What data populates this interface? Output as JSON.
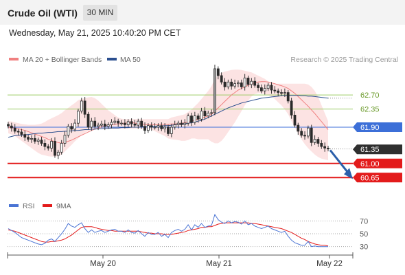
{
  "header": {
    "title": "Crude Oil (WTI)",
    "timeframe": "30 MIN"
  },
  "datetime": "Wednesday, May 21, 2025 10:40:20 PM CET",
  "source": "Research © 2025 Trading Central",
  "colors": {
    "bollinger": "#f08080",
    "ma50": "#2b4f8f",
    "support_line": "#e31b1b",
    "pivot_line": "#3c6fd8",
    "resistance_line": "#9ccc65",
    "arrow": "#2b5faa",
    "rsi": "#4a74d4",
    "rsi_ma": "#e31b1b"
  },
  "chart_data": [
    {
      "type": "candlestick",
      "legend": [
        {
          "name": "MA 20 + Bollinger Bands",
          "color": "#f08080"
        },
        {
          "name": "MA 50",
          "color": "#2b4f8f"
        }
      ],
      "x_ticks": [
        "May 20",
        "May 21",
        "May 22"
      ],
      "y_range": [
        60.45,
        63.35
      ],
      "levels": [
        {
          "value": 62.7,
          "label": "62.70",
          "kind": "resistance"
        },
        {
          "value": 62.35,
          "label": "62.35",
          "kind": "resistance"
        },
        {
          "value": 61.9,
          "label": "61.90",
          "kind": "pivot"
        },
        {
          "value": 61.35,
          "label": "61.35",
          "kind": "last"
        },
        {
          "value": 61.0,
          "label": "61.00",
          "kind": "support"
        },
        {
          "value": 60.65,
          "label": "60.65",
          "kind": "support"
        }
      ],
      "closes": [
        61.93,
        61.88,
        61.8,
        61.78,
        61.72,
        61.65,
        61.6,
        61.62,
        61.55,
        61.58,
        61.5,
        61.42,
        61.38,
        61.55,
        61.2,
        61.28,
        61.5,
        61.7,
        61.92,
        61.85,
        62.0,
        62.3,
        62.55,
        62.22,
        61.9,
        62.05,
        61.92,
        61.95,
        61.98,
        61.92,
        61.96,
        62.02,
        62.05,
        62.0,
        62.0,
        61.96,
        62.04,
        61.98,
        61.95,
        62.05,
        61.92,
        61.82,
        61.94,
        61.9,
        61.9,
        61.94,
        61.86,
        61.9,
        61.74,
        61.9,
        61.96,
        62.0,
        61.96,
        62.0,
        62.18,
        62.02,
        62.18,
        62.1,
        62.3,
        62.18,
        62.25,
        62.26,
        63.35,
        63.18,
        63.02,
        62.9,
        63.02,
        62.92,
        62.98,
        63.0,
        62.9,
        63.12,
        62.96,
        63.04,
        62.94,
        62.88,
        62.8,
        62.86,
        62.94,
        62.82,
        62.8,
        62.76,
        62.74,
        62.76,
        62.55,
        62.2,
        61.95,
        61.8,
        61.7,
        61.68,
        61.88,
        61.52,
        61.6,
        61.5,
        61.42,
        61.38,
        61.36
      ],
      "ma50": [
        61.65,
        61.67,
        61.69,
        61.7,
        61.7,
        61.71,
        61.72,
        61.73,
        61.74,
        61.75,
        61.75,
        61.76,
        61.77,
        61.77,
        61.78,
        61.79,
        61.79,
        61.8,
        61.8,
        61.81,
        61.82,
        61.82,
        61.83,
        61.84,
        61.84,
        61.85,
        61.85,
        61.86,
        61.86,
        61.87,
        61.87,
        61.88,
        61.88,
        61.88,
        61.89,
        61.89,
        61.89,
        61.9,
        61.9,
        61.9,
        61.91,
        61.91,
        61.91,
        61.92,
        61.92,
        61.93,
        61.93,
        61.94,
        61.94,
        61.95,
        61.96,
        61.97,
        61.98,
        61.99,
        62.0,
        62.01,
        62.03,
        62.05,
        62.07,
        62.1,
        62.14,
        62.18,
        62.22,
        62.26,
        62.3,
        62.34,
        62.38,
        62.41,
        62.44,
        62.47,
        62.5,
        62.52,
        62.54,
        62.56,
        62.58,
        62.6,
        62.62,
        62.63,
        62.64,
        62.65,
        62.66,
        62.67,
        62.68,
        62.69,
        62.69,
        62.69,
        62.69,
        62.69,
        62.68,
        62.68,
        62.67,
        62.67,
        62.66,
        62.65,
        62.64,
        62.63,
        62.62
      ],
      "ma20": [
        61.9,
        61.89,
        61.88,
        61.86,
        61.84,
        61.82,
        61.79,
        61.76,
        61.73,
        61.7,
        61.67,
        61.64,
        61.6,
        61.57,
        61.54,
        61.52,
        61.5,
        61.52,
        61.55,
        61.58,
        61.62,
        61.66,
        61.7,
        61.74,
        61.78,
        61.82,
        61.85,
        61.88,
        61.91,
        61.93,
        61.95,
        61.96,
        61.97,
        61.98,
        61.99,
        62.0,
        62.01,
        62.02,
        62.0,
        61.99,
        61.98,
        61.97,
        61.96,
        61.96,
        61.96,
        61.96,
        61.97,
        61.97,
        61.97,
        61.98,
        61.98,
        61.99,
        62.0,
        62.01,
        62.03,
        62.05,
        62.08,
        62.1,
        62.12,
        62.15,
        62.18,
        62.22,
        62.3,
        62.38,
        62.46,
        62.54,
        62.62,
        62.7,
        62.76,
        62.82,
        62.86,
        62.9,
        62.94,
        62.98,
        63.0,
        63.02,
        63.03,
        63.03,
        63.02,
        63.0,
        62.98,
        62.95,
        62.93,
        62.9,
        62.86,
        62.8,
        62.74,
        62.66,
        62.58,
        62.5,
        62.42,
        62.33,
        62.24,
        62.14,
        62.04,
        61.94,
        61.84
      ],
      "bb_upper": [
        62.05,
        62.04,
        62.02,
        62.0,
        61.98,
        61.97,
        61.96,
        61.96,
        61.96,
        61.97,
        61.99,
        62.03,
        62.08,
        62.12,
        62.16,
        62.2,
        62.25,
        62.32,
        62.38,
        62.44,
        62.5,
        62.57,
        62.6,
        62.62,
        62.64,
        62.65,
        62.62,
        62.56,
        62.48,
        62.4,
        62.32,
        62.26,
        62.2,
        62.14,
        62.11,
        62.1,
        62.1,
        62.1,
        62.1,
        62.1,
        62.1,
        62.1,
        62.1,
        62.1,
        62.1,
        62.1,
        62.1,
        62.1,
        62.1,
        62.14,
        62.16,
        62.18,
        62.2,
        62.22,
        62.28,
        62.34,
        62.42,
        62.5,
        62.6,
        62.7,
        62.8,
        62.92,
        63.1,
        63.2,
        63.25,
        63.28,
        63.3,
        63.32,
        63.33,
        63.33,
        63.32,
        63.3,
        63.28,
        63.26,
        63.22,
        63.18,
        63.14,
        63.1,
        63.04,
        63.0,
        62.98,
        62.98,
        62.98,
        62.98,
        62.98,
        62.98,
        62.98,
        62.98,
        62.98,
        62.98,
        62.96,
        62.9,
        62.8,
        62.65,
        62.45,
        62.25,
        62.05
      ],
      "bb_lower": [
        61.75,
        61.72,
        61.68,
        61.62,
        61.56,
        61.5,
        61.44,
        61.38,
        61.32,
        61.26,
        61.22,
        61.2,
        61.18,
        61.17,
        61.17,
        61.18,
        61.22,
        61.3,
        61.38,
        61.46,
        61.55,
        61.62,
        61.7,
        61.76,
        61.81,
        61.84,
        61.86,
        61.86,
        61.86,
        61.86,
        61.86,
        61.86,
        61.86,
        61.86,
        61.86,
        61.86,
        61.86,
        61.86,
        61.86,
        61.86,
        61.86,
        61.86,
        61.86,
        61.84,
        61.8,
        61.76,
        61.72,
        61.68,
        61.62,
        61.6,
        61.59,
        61.58,
        61.56,
        61.56,
        61.58,
        61.62,
        61.62,
        61.6,
        61.6,
        61.6,
        61.6,
        61.54,
        61.5,
        61.5,
        61.56,
        61.66,
        61.78,
        61.9,
        62.02,
        62.16,
        62.3,
        62.44,
        62.56,
        62.66,
        62.72,
        62.74,
        62.74,
        62.72,
        62.7,
        62.66,
        62.6,
        62.52,
        62.44,
        62.34,
        62.22,
        62.05,
        61.9,
        61.74,
        61.6,
        61.48,
        61.38,
        61.3,
        61.22,
        61.16,
        61.12,
        61.1,
        61.08
      ]
    },
    {
      "type": "line",
      "legend": [
        {
          "name": "RSI",
          "color": "#4a74d4"
        },
        {
          "name": "9MA",
          "color": "#e31b1b"
        }
      ],
      "y_ticks": [
        "70",
        "50",
        "30"
      ],
      "y_range": [
        20,
        80
      ],
      "rsi": [
        58,
        55,
        52,
        48,
        44,
        42,
        40,
        38,
        36,
        34,
        33,
        35,
        40,
        42,
        38,
        44,
        50,
        57,
        66,
        62,
        60,
        64,
        67,
        58,
        52,
        56,
        52,
        54,
        55,
        52,
        54,
        56,
        57,
        54,
        54,
        52,
        56,
        52,
        51,
        55,
        50,
        46,
        52,
        49,
        49,
        52,
        46,
        49,
        44,
        52,
        55,
        57,
        54,
        57,
        64,
        56,
        64,
        60,
        66,
        60,
        62,
        63,
        80,
        72,
        68,
        66,
        70,
        67,
        69,
        68,
        65,
        70,
        64,
        66,
        62,
        60,
        58,
        60,
        62,
        58,
        56,
        54,
        52,
        54,
        46,
        40,
        36,
        34,
        32,
        32,
        38,
        30,
        31,
        30,
        30,
        30,
        30
      ],
      "ma9": [
        56,
        55,
        54,
        52,
        50,
        48,
        46,
        44,
        42,
        40,
        38,
        37,
        37,
        38,
        38,
        39,
        40,
        42,
        45,
        48,
        52,
        56,
        60,
        61,
        61,
        61,
        60,
        58,
        57,
        56,
        55,
        55,
        54,
        54,
        54,
        54,
        54,
        54,
        54,
        54,
        53,
        52,
        51,
        51,
        50,
        50,
        50,
        49,
        49,
        49,
        50,
        51,
        52,
        53,
        55,
        56,
        57,
        58,
        60,
        60,
        61,
        61,
        63,
        65,
        66,
        67,
        67,
        67,
        67,
        67,
        67,
        67,
        67,
        66,
        66,
        65,
        64,
        63,
        62,
        61,
        60,
        59,
        58,
        56,
        54,
        52,
        49,
        46,
        43,
        41,
        38,
        36,
        34,
        33,
        32,
        32,
        31
      ]
    }
  ]
}
